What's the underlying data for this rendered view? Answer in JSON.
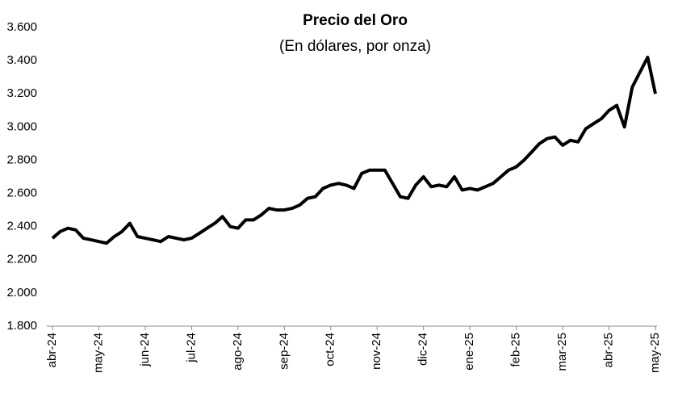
{
  "chart_data": {
    "type": "line",
    "title": "Precio del Oro",
    "subtitle": "(En dólares, por onza)",
    "color": "#000000",
    "categories": [
      "abr-24",
      null,
      null,
      null,
      null,
      null,
      "may-24",
      null,
      null,
      null,
      null,
      null,
      "jun-24",
      null,
      null,
      null,
      null,
      null,
      "jul-24",
      null,
      null,
      null,
      null,
      null,
      "ago-24",
      null,
      null,
      null,
      null,
      null,
      "sep-24",
      null,
      null,
      null,
      null,
      null,
      "oct-24",
      null,
      null,
      null,
      null,
      null,
      "nov-24",
      null,
      null,
      null,
      null,
      null,
      "dic-24",
      null,
      null,
      null,
      null,
      null,
      "ene-25",
      null,
      null,
      null,
      null,
      null,
      "feb-25",
      null,
      null,
      null,
      null,
      null,
      "mar-25",
      null,
      null,
      null,
      null,
      null,
      "abr-25",
      null,
      null,
      null,
      null,
      null,
      "may-25"
    ],
    "values": [
      2330,
      2370,
      2390,
      2380,
      2330,
      2320,
      2310,
      2300,
      2340,
      2370,
      2420,
      2340,
      2330,
      2320,
      2310,
      2340,
      2330,
      2320,
      2330,
      2360,
      2390,
      2420,
      2460,
      2400,
      2390,
      2440,
      2440,
      2470,
      2510,
      2500,
      2500,
      2510,
      2530,
      2570,
      2580,
      2630,
      2650,
      2660,
      2650,
      2630,
      2720,
      2740,
      2740,
      2740,
      2660,
      2580,
      2570,
      2650,
      2700,
      2640,
      2650,
      2640,
      2700,
      2620,
      2630,
      2620,
      2640,
      2660,
      2700,
      2740,
      2760,
      2800,
      2850,
      2900,
      2930,
      2940,
      2890,
      2920,
      2910,
      2990,
      3020,
      3050,
      3100,
      3130,
      3000,
      3240,
      3330,
      3420,
      3200
    ],
    "ylim": [
      1800,
      3600
    ],
    "yticks": [
      {
        "value": 1800,
        "label": "1.800"
      },
      {
        "value": 2000,
        "label": "2.000"
      },
      {
        "value": 2200,
        "label": "2.200"
      },
      {
        "value": 2400,
        "label": "2.400"
      },
      {
        "value": 2600,
        "label": "2.600"
      },
      {
        "value": 2800,
        "label": "2.800"
      },
      {
        "value": 3000,
        "label": "3.000"
      },
      {
        "value": 3200,
        "label": "3.200"
      },
      {
        "value": 3400,
        "label": "3.400"
      },
      {
        "value": 3600,
        "label": "3.600"
      }
    ],
    "grid": false
  }
}
